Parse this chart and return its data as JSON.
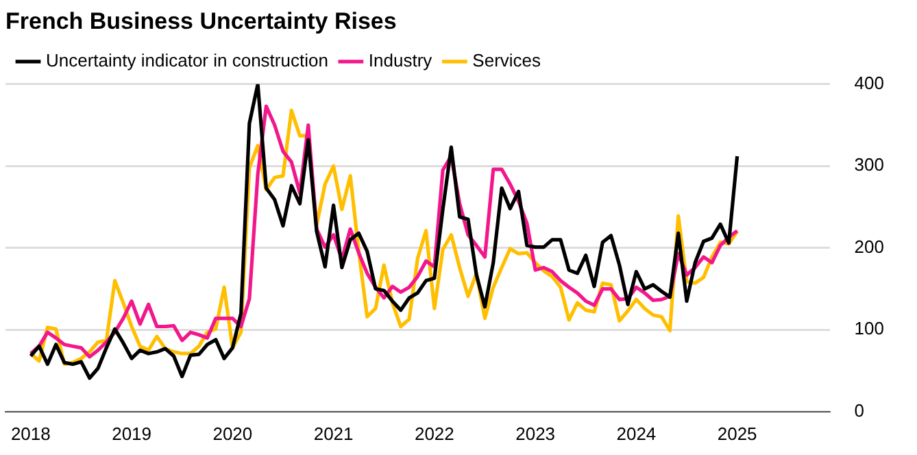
{
  "chart_data": {
    "type": "line",
    "title": "French Business Uncertainty Rises",
    "x": [
      "2018-01",
      "2018-02",
      "2018-03",
      "2018-04",
      "2018-05",
      "2018-06",
      "2018-07",
      "2018-08",
      "2018-09",
      "2018-10",
      "2018-11",
      "2018-12",
      "2019-01",
      "2019-02",
      "2019-03",
      "2019-04",
      "2019-05",
      "2019-06",
      "2019-07",
      "2019-08",
      "2019-09",
      "2019-10",
      "2019-11",
      "2019-12",
      "2020-01",
      "2020-02",
      "2020-03",
      "2020-04",
      "2020-05",
      "2020-06",
      "2020-07",
      "2020-08",
      "2020-09",
      "2020-10",
      "2020-11",
      "2020-12",
      "2021-01",
      "2021-02",
      "2021-03",
      "2021-04",
      "2021-05",
      "2021-06",
      "2021-07",
      "2021-08",
      "2021-09",
      "2021-10",
      "2021-11",
      "2021-12",
      "2022-01",
      "2022-02",
      "2022-03",
      "2022-04",
      "2022-05",
      "2022-06",
      "2022-07",
      "2022-08",
      "2022-09",
      "2022-10",
      "2022-11",
      "2022-12",
      "2023-01",
      "2023-02",
      "2023-03",
      "2023-04",
      "2023-05",
      "2023-06",
      "2023-07",
      "2023-08",
      "2023-09",
      "2023-10",
      "2023-11",
      "2023-12",
      "2024-01",
      "2024-02",
      "2024-03",
      "2024-04",
      "2024-05",
      "2024-06",
      "2024-07",
      "2024-08",
      "2024-09",
      "2024-10",
      "2024-11",
      "2024-12",
      "2025-01"
    ],
    "series": [
      {
        "name": "Uncertainty indicator in construction",
        "color": "#000000",
        "values": [
          68,
          80,
          58,
          82,
          60,
          58,
          61,
          41,
          53,
          78,
          101,
          84,
          65,
          75,
          71,
          73,
          77,
          68,
          43,
          69,
          70,
          82,
          88,
          65,
          78,
          120,
          352,
          400,
          273,
          259,
          227,
          276,
          254,
          332,
          220,
          177,
          252,
          176,
          210,
          218,
          196,
          150,
          148,
          135,
          124,
          139,
          145,
          160,
          163,
          247,
          323,
          238,
          235,
          167,
          128,
          182,
          273,
          248,
          269,
          203,
          201,
          201,
          210,
          210,
          173,
          169,
          191,
          153,
          207,
          215,
          179,
          131,
          171,
          150,
          155,
          147,
          140,
          218,
          135,
          182,
          208,
          212,
          229,
          206,
          312
        ]
      },
      {
        "name": "Industry",
        "color": "#f2178b",
        "values": [
          71,
          80,
          97,
          90,
          82,
          80,
          78,
          67,
          75,
          85,
          97,
          114,
          135,
          107,
          131,
          104,
          104,
          105,
          87,
          97,
          94,
          90,
          114,
          114,
          114,
          104,
          138,
          290,
          373,
          350,
          318,
          305,
          267,
          350,
          223,
          201,
          216,
          186,
          223,
          194,
          169,
          152,
          139,
          153,
          146,
          152,
          165,
          184,
          177,
          295,
          312,
          254,
          216,
          203,
          189,
          296,
          296,
          278,
          257,
          230,
          173,
          176,
          171,
          160,
          152,
          145,
          135,
          130,
          150,
          150,
          137,
          138,
          152,
          145,
          136,
          137,
          141,
          193,
          167,
          176,
          189,
          182,
          203,
          213,
          221
        ]
      },
      {
        "name": "Services",
        "color": "#ffbf00",
        "values": [
          71,
          62,
          103,
          101,
          58,
          60,
          65,
          73,
          85,
          87,
          160,
          133,
          104,
          80,
          75,
          92,
          77,
          73,
          71,
          71,
          80,
          97,
          101,
          152,
          78,
          97,
          298,
          325,
          271,
          286,
          288,
          368,
          337,
          337,
          228,
          278,
          300,
          247,
          288,
          196,
          116,
          126,
          179,
          133,
          104,
          113,
          187,
          221,
          126,
          198,
          216,
          176,
          141,
          169,
          114,
          152,
          176,
          199,
          193,
          194,
          182,
          172,
          165,
          152,
          112,
          133,
          124,
          122,
          157,
          155,
          111,
          123,
          137,
          126,
          118,
          116,
          99,
          239,
          159,
          157,
          164,
          189,
          207,
          205,
          220
        ]
      }
    ],
    "xlim": [
      "2017-10",
      "2025-12"
    ],
    "xticks": [
      "2018",
      "2019",
      "2020",
      "2021",
      "2022",
      "2023",
      "2024",
      "2025"
    ],
    "ylim": [
      0,
      400
    ],
    "yticks": [
      0,
      100,
      200,
      300,
      400
    ],
    "grid": "y",
    "legend": "top left",
    "marker": "none",
    "line_style": "solid"
  }
}
